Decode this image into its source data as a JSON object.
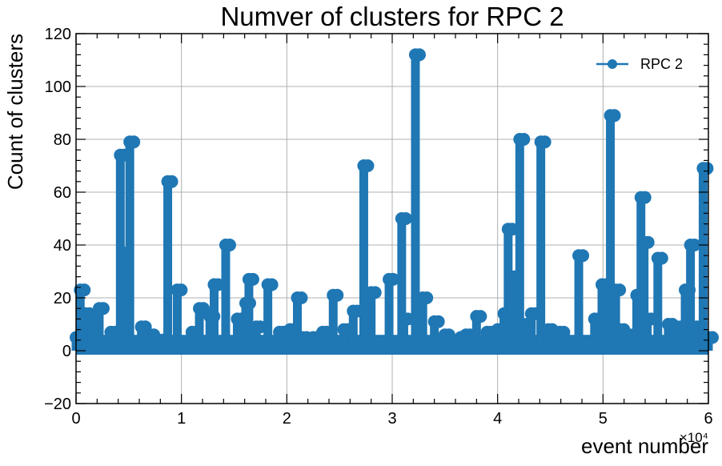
{
  "chart_data": {
    "type": "line",
    "title": "Numver of clusters for RPC 2",
    "xlabel": "event number",
    "ylabel": "Count of clusters",
    "x_offset_label": "×10⁴",
    "x_scale": 10000,
    "xlim": [
      0,
      60000
    ],
    "ylim": [
      -20,
      120
    ],
    "x_ticks": [
      0,
      10000,
      20000,
      30000,
      40000,
      50000,
      60000
    ],
    "x_tick_labels": [
      "0",
      "1",
      "2",
      "3",
      "4",
      "5",
      "6"
    ],
    "y_ticks": [
      -20,
      0,
      20,
      40,
      60,
      80,
      100,
      120
    ],
    "y_tick_labels": [
      "−20",
      "0",
      "20",
      "40",
      "60",
      "80",
      "100",
      "120"
    ],
    "grid": true,
    "legend_position": "top-right",
    "series": [
      {
        "name": "RPC 2",
        "color": "#1f77b4",
        "marker": "circle",
        "x": [
          0,
          400,
          900,
          1500,
          2200,
          3300,
          4200,
          4500,
          5100,
          6200,
          7000,
          8200,
          8700,
          9600,
          11000,
          11700,
          12700,
          13100,
          14200,
          15300,
          16100,
          16400,
          17100,
          18200,
          19300,
          20300,
          21000,
          21500,
          22500,
          23400,
          24400,
          25400,
          26300,
          27300,
          28000,
          29700,
          30900,
          31100,
          32200,
          32900,
          34000,
          35000,
          36500,
          37000,
          38000,
          39000,
          40000,
          40600,
          41000,
          41300,
          42100,
          42400,
          43200,
          44100,
          44800,
          45900,
          47700,
          49200,
          49900,
          50300,
          50700,
          51200,
          51600,
          52500,
          53200,
          53600,
          53900,
          54200,
          55200,
          56200,
          57000,
          57800,
          58300,
          58900,
          59500,
          60000
        ],
        "y": [
          5,
          23,
          14,
          12,
          16,
          7,
          74,
          37,
          79,
          9,
          6,
          4,
          64,
          23,
          7,
          16,
          13,
          25,
          40,
          12,
          18,
          27,
          9,
          25,
          7,
          8,
          20,
          5,
          5,
          7,
          21,
          8,
          15,
          70,
          22,
          27,
          50,
          12,
          112,
          20,
          11,
          6,
          5,
          6,
          13,
          7,
          8,
          14,
          46,
          28,
          80,
          10,
          14,
          79,
          8,
          7,
          36,
          12,
          25,
          15,
          89,
          23,
          8,
          6,
          21,
          58,
          41,
          12,
          35,
          10,
          9,
          23,
          40,
          9,
          69,
          5
        ]
      }
    ]
  }
}
